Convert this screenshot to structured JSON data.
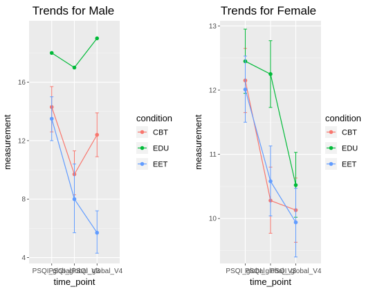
{
  "chart_data": [
    {
      "type": "line",
      "title": "Trends for Male",
      "xlabel": "time_point",
      "ylabel": "measurement",
      "categories": [
        "PSQI_global",
        "PSQI_global_V3",
        "PSQI_global_V4"
      ],
      "ylim": [
        3.6,
        20.2
      ],
      "yticks": [
        4,
        8,
        12,
        16
      ],
      "grid": true,
      "legend": {
        "title": "condition",
        "position": "right",
        "items": [
          {
            "name": "CBT",
            "color": "#F8766D"
          },
          {
            "name": "EDU",
            "color": "#00BA38"
          },
          {
            "name": "EET",
            "color": "#619CFF"
          }
        ]
      },
      "series": [
        {
          "name": "CBT",
          "color": "#F8766D",
          "values": [
            14.3,
            9.7,
            12.4
          ],
          "err_low": [
            12.6,
            8.3,
            10.9
          ],
          "err_high": [
            15.7,
            11.3,
            13.9
          ]
        },
        {
          "name": "EDU",
          "color": "#00BA38",
          "values": [
            18.0,
            17.0,
            19.0
          ],
          "err_low": [
            18.0,
            17.0,
            19.0
          ],
          "err_high": [
            18.0,
            17.0,
            19.0
          ]
        },
        {
          "name": "EET",
          "color": "#619CFF",
          "values": [
            13.5,
            8.0,
            5.7
          ],
          "err_low": [
            12.0,
            5.7,
            4.3
          ],
          "err_high": [
            15.0,
            10.4,
            7.2
          ]
        }
      ]
    },
    {
      "type": "line",
      "title": "Trends for Female",
      "xlabel": "time_point",
      "ylabel": "measurement",
      "categories": [
        "PSQI_global",
        "PSQI_global_V3",
        "PSQI_global_V4"
      ],
      "ylim": [
        9.3,
        13.08
      ],
      "yticks": [
        10,
        11,
        12,
        13
      ],
      "grid": true,
      "legend": {
        "title": "condition",
        "position": "right",
        "items": [
          {
            "name": "CBT",
            "color": "#F8766D"
          },
          {
            "name": "EDU",
            "color": "#00BA38"
          },
          {
            "name": "EET",
            "color": "#619CFF"
          }
        ]
      },
      "series": [
        {
          "name": "CBT",
          "color": "#F8766D",
          "values": [
            12.15,
            10.28,
            10.13
          ],
          "err_low": [
            11.65,
            9.77,
            9.63
          ],
          "err_high": [
            12.65,
            10.8,
            10.63
          ]
        },
        {
          "name": "EDU",
          "color": "#00BA38",
          "values": [
            12.45,
            12.25,
            10.52
          ],
          "err_low": [
            11.95,
            11.73,
            10.02
          ],
          "err_high": [
            12.95,
            12.77,
            11.03
          ]
        },
        {
          "name": "EET",
          "color": "#619CFF",
          "values": [
            12.01,
            10.58,
            9.94
          ],
          "err_low": [
            11.5,
            10.04,
            9.4
          ],
          "err_high": [
            12.53,
            11.13,
            10.47
          ]
        }
      ]
    }
  ]
}
